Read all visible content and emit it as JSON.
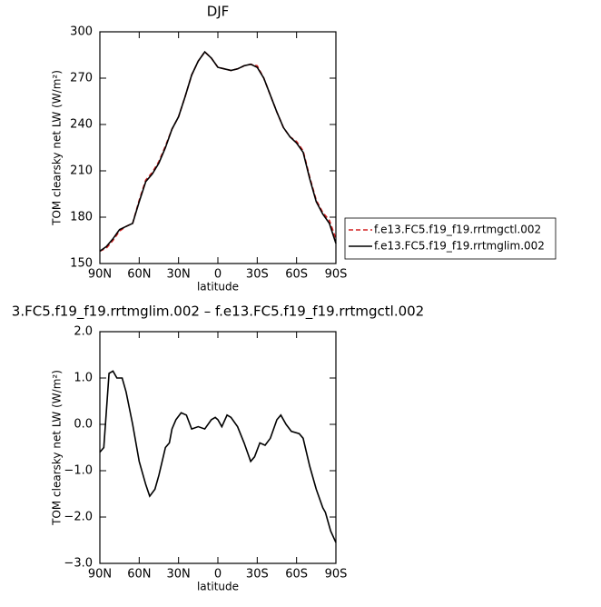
{
  "chart_data": [
    {
      "type": "line",
      "title": "DJF",
      "xlabel": "latitude",
      "ylabel": "TOM clearsky net LW (W/m²)",
      "x": [
        90,
        85,
        80,
        75,
        70,
        65,
        60,
        55,
        50,
        45,
        40,
        35,
        30,
        25,
        20,
        15,
        10,
        5,
        0,
        -5,
        -10,
        -15,
        -20,
        -25,
        -30,
        -35,
        -40,
        -45,
        -50,
        -55,
        -60,
        -65,
        -70,
        -75,
        -80,
        -85,
        -90
      ],
      "xlim": [
        90,
        -90
      ],
      "xticks": [
        {
          "value": 90,
          "label": "90N"
        },
        {
          "value": 60,
          "label": "60N"
        },
        {
          "value": 30,
          "label": "30N"
        },
        0,
        {
          "value": -30,
          "label": "30S"
        },
        {
          "value": -60,
          "label": "60S"
        },
        {
          "value": -90,
          "label": "90S"
        }
      ],
      "ylim": [
        150,
        300
      ],
      "yticks": [
        150,
        180,
        210,
        240,
        270,
        300
      ],
      "legend": "right",
      "series": [
        {
          "name": "f.e13.FC5.f19_f19.rrtmgctl.002",
          "color": "#d42020",
          "dash": true,
          "values": [
            158,
            160,
            165,
            171,
            174,
            176,
            191,
            204,
            209,
            216,
            226,
            237,
            245,
            258,
            272,
            281,
            287,
            283,
            277,
            276,
            275,
            276,
            278,
            279,
            278,
            270,
            259,
            248,
            238,
            232,
            229,
            223,
            206,
            191,
            183,
            178,
            166
          ]
        },
        {
          "name": "f.e13.FC5.f19_f19.rrtmglim.002",
          "color": "#000000",
          "dash": false,
          "values": [
            158,
            161,
            166,
            172,
            174,
            176,
            190,
            203,
            208,
            215,
            225,
            237,
            245,
            258,
            272,
            281,
            287,
            283,
            277,
            276,
            275,
            276,
            278,
            279,
            277,
            270,
            259,
            248,
            238,
            232,
            228,
            222,
            205,
            190,
            182,
            176,
            163
          ]
        }
      ]
    },
    {
      "type": "line",
      "title": "3.FC5.f19_f19.rrtmglim.002 – f.e13.FC5.f19_f19.rrtmgctl.002",
      "xlabel": "latitude",
      "ylabel": "TOM clearsky net LW (W/m²)",
      "x": [
        90,
        87,
        83,
        80,
        77,
        73,
        70,
        65,
        60,
        55,
        52,
        48,
        45,
        40,
        37,
        35,
        32,
        28,
        24,
        20,
        15,
        10,
        5,
        2,
        0,
        -3,
        -7,
        -10,
        -15,
        -20,
        -25,
        -28,
        -32,
        -36,
        -40,
        -45,
        -48,
        -52,
        -56,
        -62,
        -65,
        -70,
        -75,
        -80,
        -82,
        -86,
        -90
      ],
      "xlim": [
        90,
        -90
      ],
      "xticks": [
        {
          "value": 90,
          "label": "90N"
        },
        {
          "value": 60,
          "label": "60N"
        },
        {
          "value": 30,
          "label": "30N"
        },
        0,
        {
          "value": -30,
          "label": "30S"
        },
        {
          "value": -60,
          "label": "60S"
        },
        {
          "value": -90,
          "label": "90S"
        }
      ],
      "ylim": [
        -3,
        2
      ],
      "yticks": [
        {
          "value": -3,
          "label": "−3.0"
        },
        {
          "value": -2,
          "label": "−2.0"
        },
        {
          "value": -1,
          "label": "−1.0"
        },
        {
          "value": 0,
          "label": "0.0"
        },
        {
          "value": 1,
          "label": "1.0"
        },
        {
          "value": 2,
          "label": "2.0"
        }
      ],
      "series": [
        {
          "color": "#000000",
          "dash": false,
          "values": [
            -0.6,
            -0.5,
            1.1,
            1.15,
            1.0,
            1.0,
            0.7,
            0.0,
            -0.8,
            -1.3,
            -1.55,
            -1.4,
            -1.1,
            -0.5,
            -0.4,
            -0.1,
            0.1,
            0.25,
            0.2,
            -0.1,
            -0.05,
            -0.1,
            0.1,
            0.15,
            0.1,
            -0.05,
            0.2,
            0.15,
            -0.05,
            -0.4,
            -0.8,
            -0.7,
            -0.4,
            -0.45,
            -0.3,
            0.1,
            0.2,
            0.0,
            -0.15,
            -0.2,
            -0.3,
            -0.9,
            -1.4,
            -1.8,
            -1.9,
            -2.3,
            -2.55
          ]
        }
      ]
    }
  ]
}
